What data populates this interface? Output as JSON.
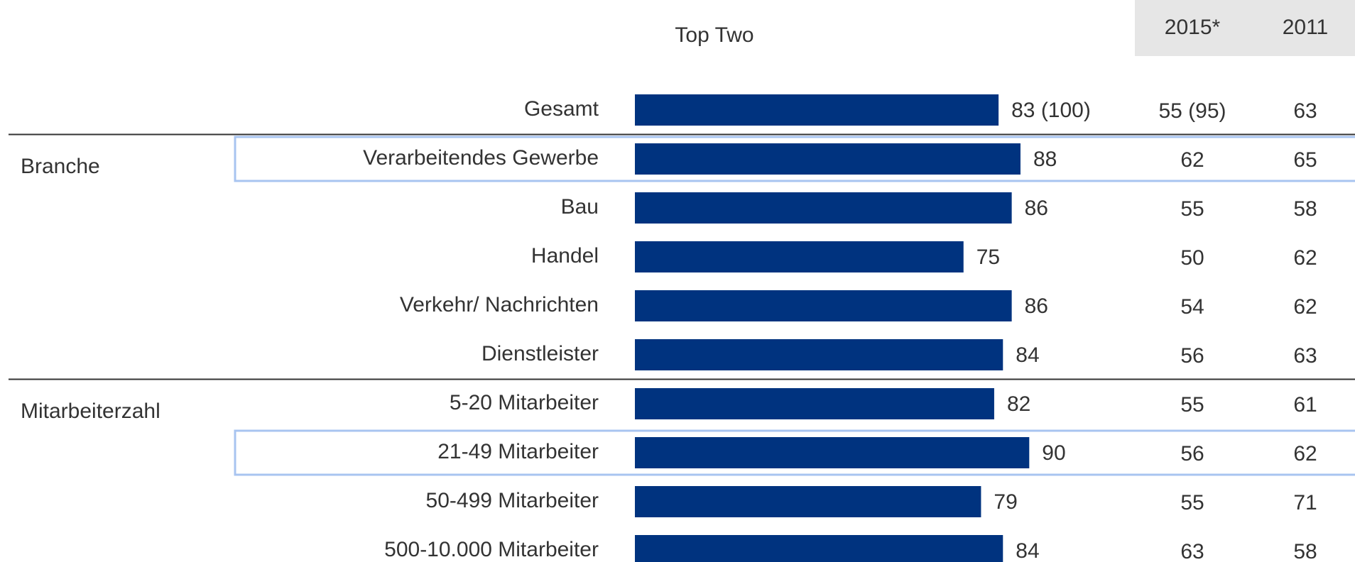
{
  "chart_data": {
    "type": "bar",
    "orientation": "horizontal",
    "title": "Top Two",
    "color": "#00337f",
    "categories": [
      "Gesamt",
      "Verarbeitendes Gewerbe",
      "Bau",
      "Handel",
      "Verkehr/ Nachrichten",
      "Dienstleister",
      "5-20 Mitarbeiter",
      "21-49 Mitarbeiter",
      "50-499 Mitarbeiter",
      "500-10.000 Mitarbeiter"
    ],
    "values": [
      83,
      88,
      86,
      75,
      86,
      84,
      82,
      90,
      79,
      84
    ],
    "value_labels": [
      "83 (100)",
      "88",
      "86",
      "75",
      "86",
      "84",
      "82",
      "90",
      "79",
      "84"
    ],
    "groups": [
      {
        "name": "Branche",
        "first": 1,
        "count": 5
      },
      {
        "name": "Mitarbeiterzahl",
        "first": 6,
        "count": 4
      }
    ],
    "highlight": [
      1,
      7
    ],
    "columns": [
      {
        "name": "2015*",
        "values": [
          55,
          62,
          55,
          50,
          54,
          56,
          55,
          56,
          55,
          63
        ],
        "value_labels": [
          "55 (95)",
          "62",
          "55",
          "50",
          "54",
          "56",
          "55",
          "56",
          "55",
          "63"
        ]
      },
      {
        "name": "2011",
        "values": [
          63,
          65,
          58,
          62,
          62,
          63,
          61,
          62,
          71,
          58
        ]
      }
    ]
  }
}
